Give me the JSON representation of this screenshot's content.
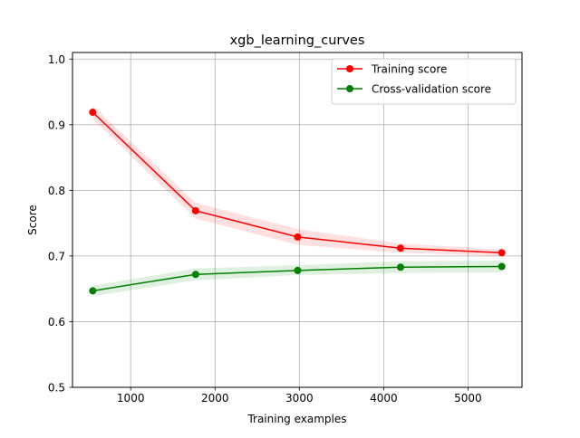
{
  "chart_data": {
    "type": "line",
    "title": "xgb_learning_curves",
    "xlabel": "Training examples",
    "ylabel": "Score",
    "xlim": [
      310,
      5640
    ],
    "ylim": [
      0.5,
      1.01
    ],
    "xticks": [
      1000,
      2000,
      3000,
      4000,
      5000
    ],
    "yticks": [
      0.5,
      0.6,
      0.7,
      0.8,
      0.9,
      1.0
    ],
    "xtick_labels": [
      "1000",
      "2000",
      "3000",
      "4000",
      "5000"
    ],
    "ytick_labels": [
      "0.5",
      "0.6",
      "0.7",
      "0.8",
      "0.9",
      "1.0"
    ],
    "grid": true,
    "legend_position": "upper right",
    "x": [
      550,
      1770,
      2980,
      4200,
      5400
    ],
    "series": [
      {
        "name": "Training score",
        "color": "#ff0000",
        "values": [
          0.919,
          0.769,
          0.729,
          0.712,
          0.705
        ],
        "band_lower": [
          0.909,
          0.757,
          0.717,
          0.705,
          0.7
        ],
        "band_upper": [
          0.929,
          0.781,
          0.741,
          0.719,
          0.71
        ]
      },
      {
        "name": "Cross-validation score",
        "color": "#008000",
        "values": [
          0.647,
          0.672,
          0.678,
          0.683,
          0.684
        ],
        "band_lower": [
          0.639,
          0.663,
          0.671,
          0.674,
          0.675
        ],
        "band_upper": [
          0.655,
          0.681,
          0.686,
          0.692,
          0.693
        ]
      }
    ]
  }
}
